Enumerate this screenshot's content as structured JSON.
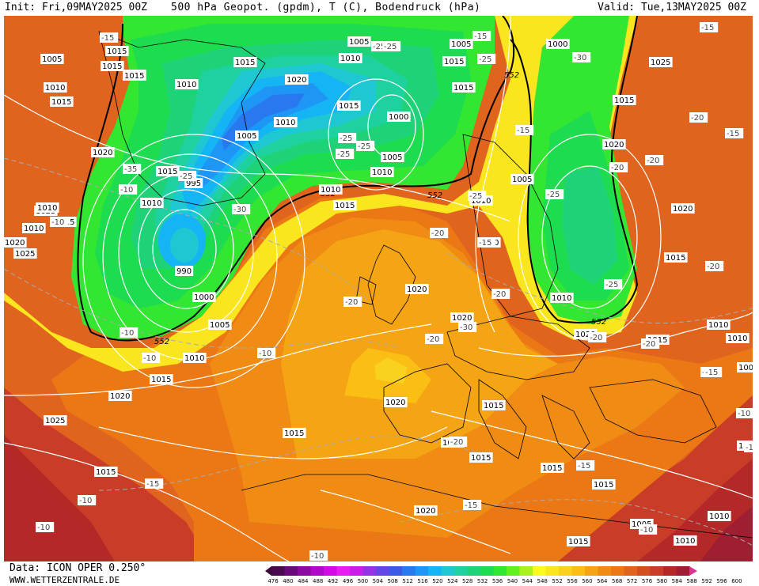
{
  "header": {
    "init": "Init: Fri,09MAY2025 00Z",
    "title": "500 hPa Geopot. (gpdm), T (C), Bodendruck (hPa)",
    "valid": "Valid: Tue,13MAY2025 00Z"
  },
  "footer": {
    "data_source": "Data: ICON OPER 0.250°",
    "website": "WWW.WETTERZENTRALE.DE"
  },
  "legend": {
    "ticks": [
      "476",
      "480",
      "484",
      "488",
      "492",
      "496",
      "500",
      "504",
      "508",
      "512",
      "516",
      "520",
      "524",
      "528",
      "532",
      "536",
      "540",
      "544",
      "548",
      "552",
      "556",
      "560",
      "564",
      "568",
      "572",
      "576",
      "580",
      "584",
      "588",
      "592",
      "596",
      "600"
    ],
    "colors": [
      "#4a0a4e",
      "#6a0a7a",
      "#8a0aa0",
      "#b00ac8",
      "#d20ae6",
      "#e81ef0",
      "#c81ee6",
      "#9632e6",
      "#6446e6",
      "#3c5ae6",
      "#2878f0",
      "#1e96f5",
      "#14b4f5",
      "#1ec8d2",
      "#1ed2a0",
      "#1ed278",
      "#1edc50",
      "#32e632",
      "#64f01e",
      "#aaf01e",
      "#fafa1e",
      "#fae61e",
      "#fad21e",
      "#fabe14",
      "#f5a514",
      "#f08c14",
      "#eb7814",
      "#e1641e",
      "#d2501e",
      "#c83c28",
      "#b42828",
      "#a01e32",
      "#dc3296"
    ]
  },
  "contour_labels": {
    "geopotential_552": [
      "552",
      "552",
      "552",
      "552",
      "552"
    ],
    "pressure": [
      "1005",
      "1015",
      "1020",
      "1010",
      "1015",
      "1020",
      "1010",
      "1005",
      "1020",
      "1025",
      "1010",
      "1015",
      "1010",
      "1005",
      "1015",
      "1010",
      "1000",
      "1005",
      "995",
      "990",
      "1000",
      "1005",
      "1010",
      "1015",
      "1020",
      "1025",
      "1025",
      "1010",
      "1015",
      "1015",
      "1005",
      "1000",
      "1010",
      "1015",
      "1010",
      "1005",
      "1010",
      "1025",
      "1015",
      "1020",
      "1020",
      "1015",
      "1010",
      "1020",
      "1020",
      "1015",
      "1020",
      "1015",
      "1015",
      "1015",
      "1015",
      "1015",
      "1020",
      "1015",
      "1020",
      "1015",
      "1010",
      "1010",
      "1005",
      "1005",
      "1010",
      "1010",
      "1010",
      "1015",
      "1010",
      "1010",
      "1015",
      "1015",
      "1020",
      "1015",
      "1015"
    ],
    "temperature": [
      "-15",
      "-15",
      "-25",
      "-30",
      "-25",
      "-25",
      "-20",
      "-35",
      "-25",
      "-30",
      "-25",
      "-25",
      "-25",
      "-15",
      "-15",
      "-20",
      "-20",
      "-15",
      "-25",
      "-25",
      "-20",
      "-20",
      "-25",
      "-30",
      "-20",
      "-10",
      "-20",
      "-20",
      "-20",
      "-20",
      "-15",
      "-15",
      "-15",
      "-10",
      "-10",
      "-10",
      "-10",
      "-10",
      "-15",
      "-15",
      "-10",
      "-10",
      "-10",
      "-10",
      "-10",
      "-10",
      "-10",
      "-15",
      "-20",
      "-20",
      "-15"
    ]
  }
}
